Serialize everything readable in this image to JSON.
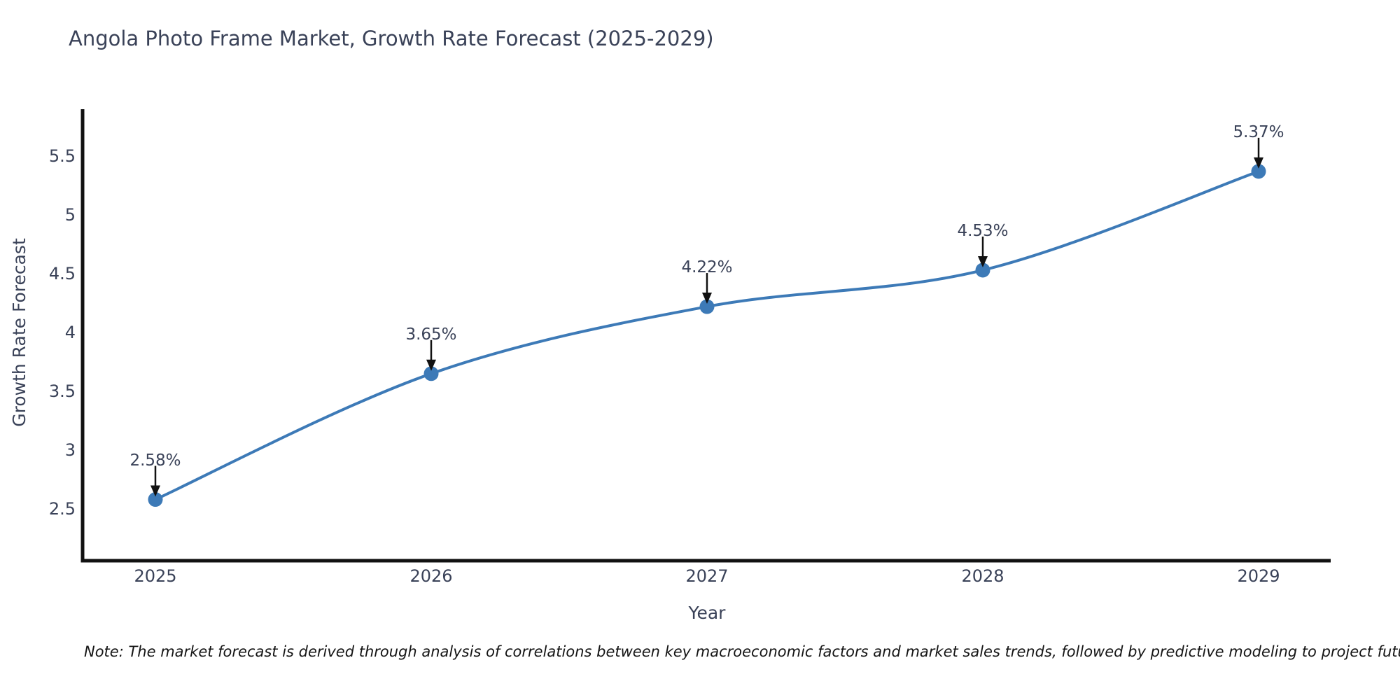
{
  "title": "Angola Photo Frame Market, Growth Rate Forecast (2025-2029)",
  "note": "Note: The market forecast is derived through analysis of correlations between key macroeconomic factors and market sales trends, followed by predictive modeling to project future sales",
  "chart_data": {
    "type": "line",
    "title": "Angola Photo Frame Market, Growth Rate Forecast (2025-2029)",
    "xlabel": "Year",
    "ylabel": "Growth Rate Forecast",
    "x": [
      2025,
      2026,
      2027,
      2028,
      2029
    ],
    "values": [
      2.58,
      3.65,
      4.22,
      4.53,
      5.37
    ],
    "point_labels": [
      "2.58%",
      "3.65%",
      "4.22%",
      "4.53%",
      "5.37%"
    ],
    "yticks": [
      2.5,
      3,
      3.5,
      4,
      4.5,
      5,
      5.5
    ],
    "ylim": [
      2.07,
      5.89
    ],
    "grid": false,
    "legend": false,
    "line_style": "spline",
    "marker": "circle",
    "line_color": "#3d7ab7",
    "marker_color": "#3d7ab7",
    "axis_color": "#111111",
    "text_color": "#3a4258"
  }
}
